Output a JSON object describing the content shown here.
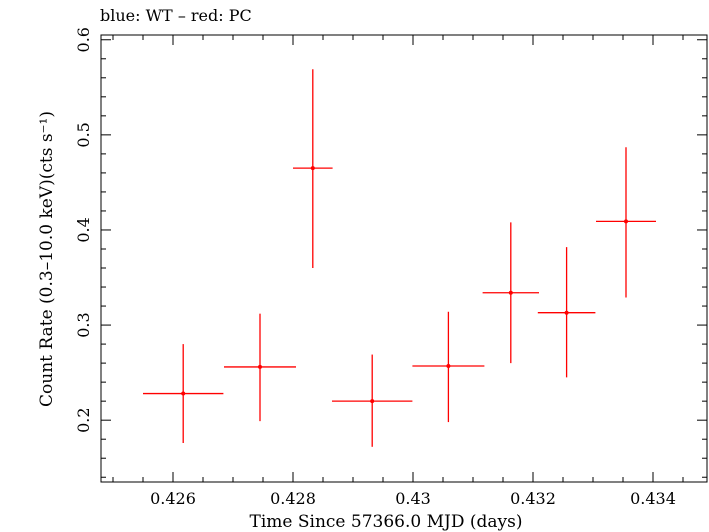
{
  "chart_data": {
    "type": "scatter",
    "title": "blue: WT – red: PC",
    "xlabel": "Time Since 57366.0 MJD (days)",
    "ylabel": "Count Rate (0.3–10.0 keV)(cts s⁻¹)",
    "xlim": [
      0.4248,
      0.4349
    ],
    "ylim": [
      0.135,
      0.605
    ],
    "xticks": [
      0.426,
      0.428,
      0.43,
      0.432,
      0.434
    ],
    "xtick_labels": [
      "0.426",
      "0.428",
      "0.43",
      "0.432",
      "0.434"
    ],
    "yticks": [
      0.2,
      0.3,
      0.4,
      0.5,
      0.6
    ],
    "ytick_labels": [
      "0.2",
      "0.3",
      "0.4",
      "0.5",
      "0.6"
    ],
    "grid": false,
    "series": [
      {
        "color": "#ff0000",
        "points": [
          {
            "x": 0.42617,
            "y": 0.228,
            "xerr": 0.00067,
            "yerr_low": 0.176,
            "yerr_high": 0.28
          },
          {
            "x": 0.42745,
            "y": 0.256,
            "xerr": 0.0006,
            "yerr_low": 0.199,
            "yerr_high": 0.312
          },
          {
            "x": 0.42833,
            "y": 0.465,
            "xerr": 0.00033,
            "yerr_low": 0.36,
            "yerr_high": 0.569
          },
          {
            "x": 0.42932,
            "y": 0.22,
            "xerr": 0.00067,
            "yerr_low": 0.172,
            "yerr_high": 0.269
          },
          {
            "x": 0.43059,
            "y": 0.257,
            "xerr": 0.0006,
            "yerr_low": 0.198,
            "yerr_high": 0.314
          },
          {
            "x": 0.43163,
            "y": 0.334,
            "xerr": 0.00047,
            "yerr_low": 0.26,
            "yerr_high": 0.408
          },
          {
            "x": 0.43256,
            "y": 0.313,
            "xerr": 0.00048,
            "yerr_low": 0.245,
            "yerr_high": 0.382
          },
          {
            "x": 0.43355,
            "y": 0.409,
            "xerr": 0.0005,
            "yerr_low": 0.329,
            "yerr_high": 0.487
          }
        ]
      }
    ]
  }
}
